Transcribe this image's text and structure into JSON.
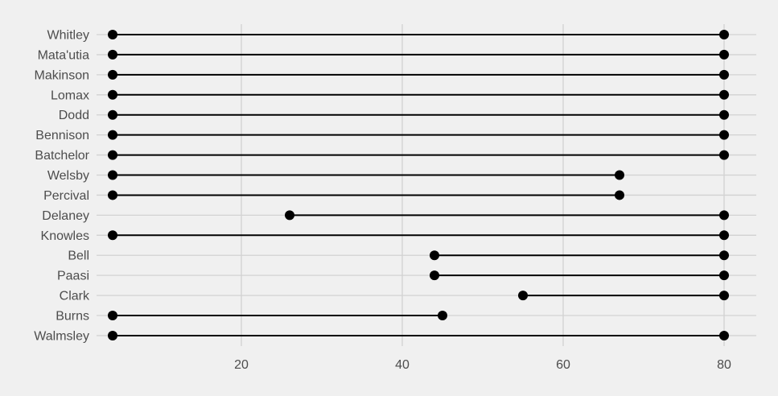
{
  "chart_data": {
    "type": "dumbbell",
    "title": "",
    "xlabel": "",
    "ylabel": "",
    "xlim": [
      2,
      84
    ],
    "x_ticks": [
      20,
      40,
      60,
      80
    ],
    "grid": true,
    "legend": "none",
    "colors": {
      "background": "#f0f0f0",
      "grid": "#d2d2d2",
      "mark": "#000000",
      "text": "#4d4d4d"
    },
    "categories": [
      "Whitley",
      "Mata'utia",
      "Makinson",
      "Lomax",
      "Dodd",
      "Bennison",
      "Batchelor",
      "Welsby",
      "Percival",
      "Delaney",
      "Knowles",
      "Bell",
      "Paasi",
      "Clark",
      "Burns",
      "Walmsley"
    ],
    "start": [
      4,
      4,
      4,
      4,
      4,
      4,
      4,
      4,
      4,
      26,
      4,
      44,
      44,
      55,
      4,
      4
    ],
    "end": [
      80,
      80,
      80,
      80,
      80,
      80,
      80,
      67,
      67,
      80,
      80,
      80,
      80,
      80,
      45,
      80
    ]
  }
}
